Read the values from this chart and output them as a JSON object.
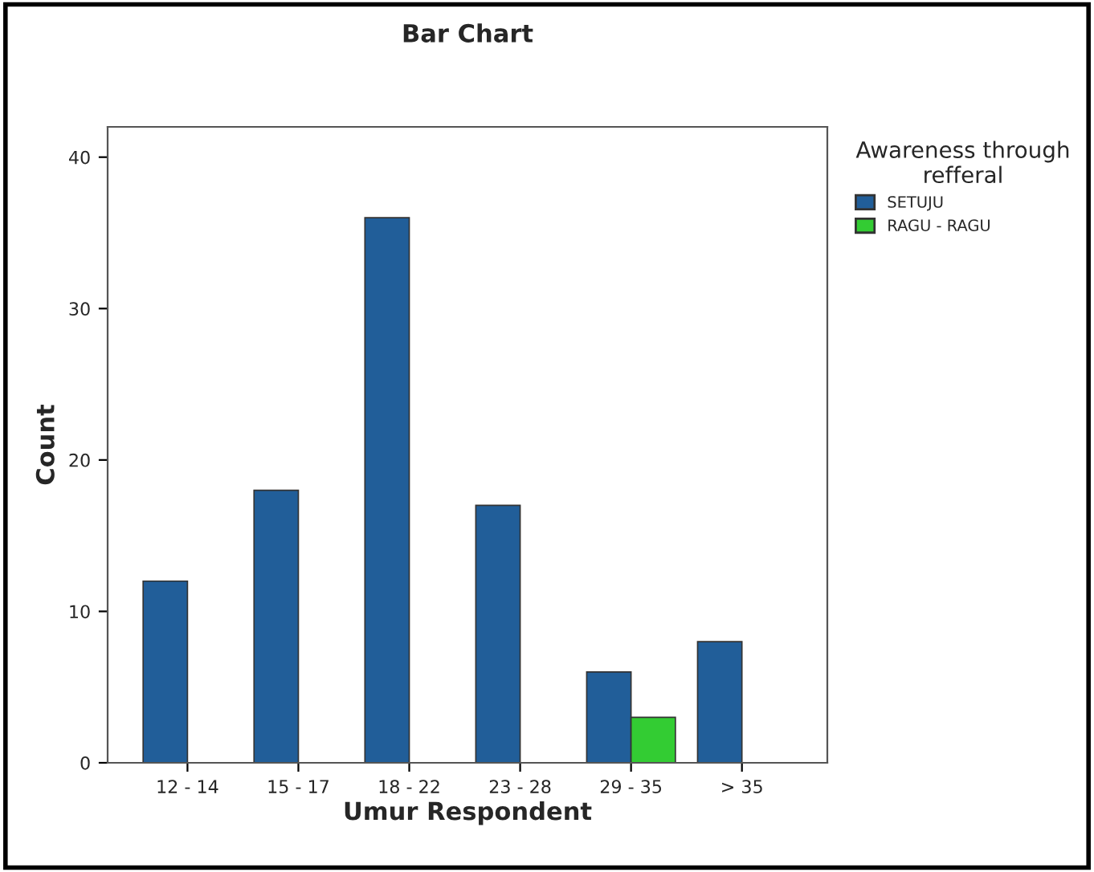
{
  "chart_data": {
    "type": "bar",
    "title": "Bar Chart",
    "xlabel": "Umur Respondent",
    "ylabel": "Count",
    "legend_title": "Awareness through\nrefferal",
    "categories": [
      "12 - 14",
      "15 - 17",
      "18 - 22",
      "23 - 28",
      "29 - 35",
      "> 35"
    ],
    "series": [
      {
        "name": "SETUJU",
        "color": "#215e99",
        "values": [
          12,
          18,
          36,
          17,
          6,
          8
        ]
      },
      {
        "name": "RAGU - RAGU",
        "color": "#33cc33",
        "values": [
          null,
          null,
          null,
          null,
          3,
          null
        ]
      }
    ],
    "ylim": [
      0,
      42
    ],
    "yticks": [
      0,
      10,
      20,
      30,
      40
    ],
    "grid": false,
    "legend": "top right"
  }
}
